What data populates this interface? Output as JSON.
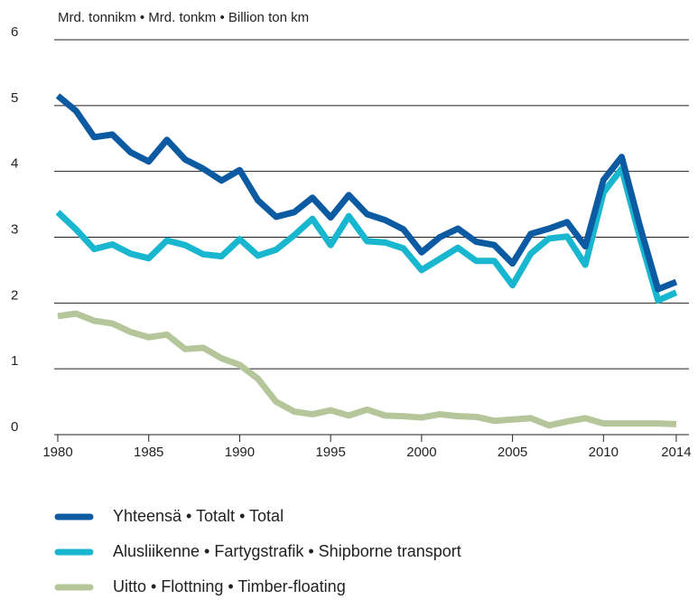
{
  "chart_data": {
    "type": "line",
    "y_axis_label": "Mrd. tonnikm • Mrd. tonkm • Billion ton km",
    "x": [
      1980,
      1981,
      1982,
      1983,
      1984,
      1985,
      1986,
      1987,
      1988,
      1989,
      1990,
      1991,
      1992,
      1993,
      1994,
      1995,
      1996,
      1997,
      1998,
      1999,
      2000,
      2001,
      2002,
      2003,
      2004,
      2005,
      2006,
      2007,
      2008,
      2009,
      2010,
      2011,
      2012,
      2013,
      2014
    ],
    "series": [
      {
        "name": "Yhteensä • Totalt • Total",
        "color": "#0b5aa2",
        "values": [
          5.15,
          4.92,
          4.52,
          4.56,
          4.29,
          4.15,
          4.48,
          4.18,
          4.04,
          3.86,
          4.02,
          3.56,
          3.31,
          3.38,
          3.6,
          3.3,
          3.64,
          3.35,
          3.26,
          3.12,
          2.77,
          3.0,
          3.13,
          2.93,
          2.88,
          2.6,
          3.05,
          3.13,
          3.23,
          2.86,
          3.87,
          4.22,
          3.17,
          2.21,
          2.32
        ]
      },
      {
        "name": "Alusliikenne • Fartygstrafik • Shipborne transport",
        "color": "#19b6cf",
        "values": [
          3.38,
          3.12,
          2.82,
          2.89,
          2.75,
          2.68,
          2.95,
          2.88,
          2.74,
          2.71,
          2.97,
          2.72,
          2.81,
          3.03,
          3.28,
          2.88,
          3.32,
          2.94,
          2.92,
          2.83,
          2.5,
          2.67,
          2.84,
          2.64,
          2.64,
          2.27,
          2.75,
          2.98,
          3.01,
          2.58,
          3.68,
          4.04,
          3.0,
          2.04,
          2.16
        ]
      },
      {
        "name": "Uitto • Flottning • Timber-floating",
        "color": "#b6c69b",
        "values": [
          1.8,
          1.84,
          1.73,
          1.69,
          1.56,
          1.48,
          1.52,
          1.3,
          1.32,
          1.16,
          1.06,
          0.85,
          0.5,
          0.35,
          0.31,
          0.37,
          0.29,
          0.38,
          0.29,
          0.28,
          0.26,
          0.31,
          0.28,
          0.27,
          0.21,
          0.23,
          0.25,
          0.14,
          0.2,
          0.25,
          0.17,
          0.17,
          0.17,
          0.17,
          0.16
        ]
      }
    ],
    "xlim": [
      1980,
      2014.7
    ],
    "xticks": [
      1980,
      1985,
      1990,
      1995,
      2000,
      2005,
      2010,
      2014
    ],
    "ylim": [
      0,
      6
    ],
    "yticks": [
      0,
      1,
      2,
      3,
      4,
      5,
      6
    ],
    "grid": true
  }
}
